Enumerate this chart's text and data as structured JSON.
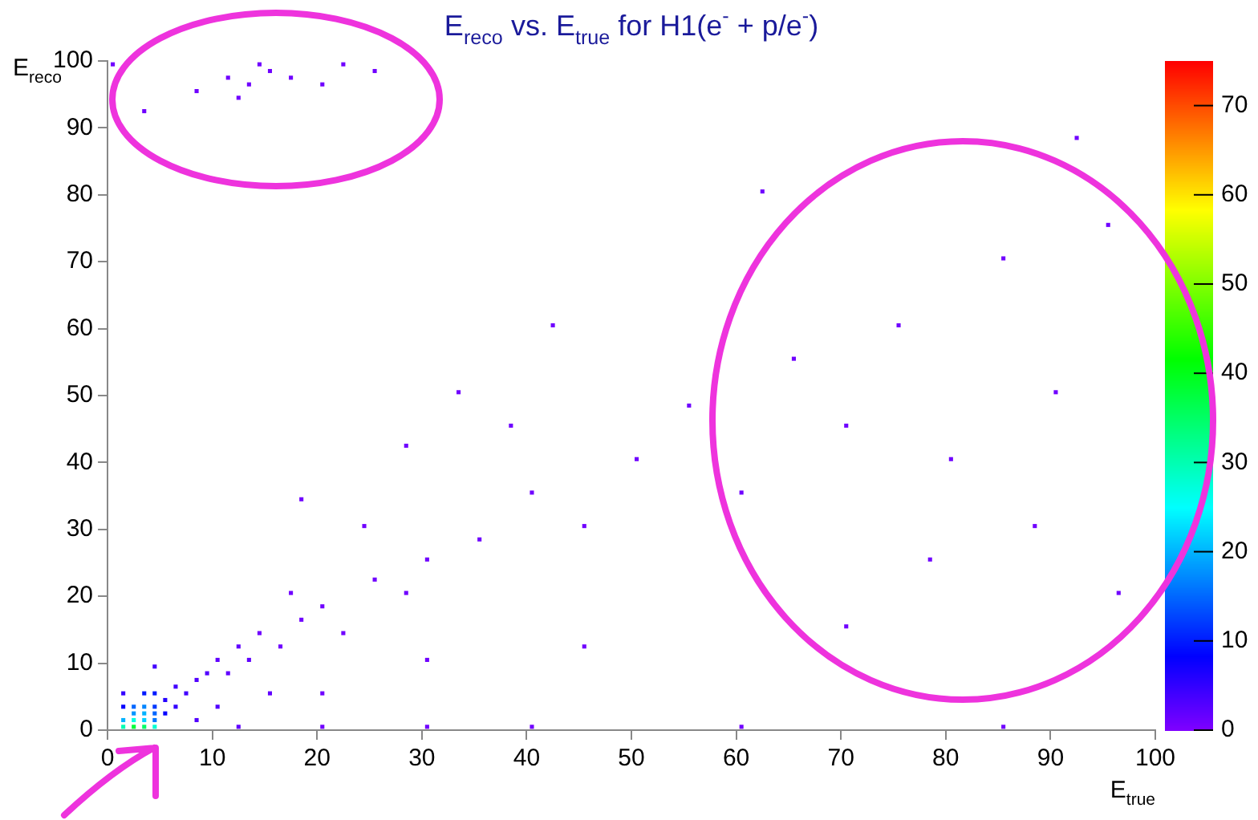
{
  "chart_data": {
    "type": "scatter",
    "title": "E$_{reco}$ vs. E$_{true}$ for H1(e$^{-}$ + p/e$^{-}$)",
    "xlabel": "E$_{true}$",
    "ylabel": "E$_{reco}$",
    "xlim": [
      0,
      100
    ],
    "xticks": [
      0,
      10,
      20,
      30,
      40,
      50,
      60,
      70,
      80,
      90,
      100
    ],
    "ylim": [
      0,
      100
    ],
    "yticks": [
      0,
      10,
      20,
      30,
      40,
      50,
      60,
      70,
      80,
      90,
      100
    ],
    "clim": [
      0,
      75
    ],
    "cticks": [
      0,
      10,
      20,
      30,
      40,
      50,
      60,
      70
    ],
    "grid": false,
    "legend": false,
    "marker": "square",
    "x": [
      1.5,
      2.5,
      3.5,
      4.5,
      1.5,
      2.5,
      3.5,
      4.5,
      2.5,
      3.5,
      4.5,
      2.5,
      3.5,
      4.5,
      3.5,
      4.5,
      4.5,
      1.5,
      1.5,
      5.5,
      5.5,
      6.5,
      7.5,
      8.5,
      9.5,
      6.5,
      10.5,
      12.5,
      11.5,
      14.5,
      13.5,
      16.5,
      18.5,
      20.5,
      17.5,
      22.5,
      25.5,
      28.5,
      30.5,
      24.5,
      35.5,
      40.5,
      45.5,
      38.5,
      50.5,
      55.5,
      60.5,
      65.5,
      70.5,
      75.5,
      80.5,
      85.5,
      90.5,
      95.5,
      62.5,
      78.5,
      88.5,
      70.5,
      42.5,
      33.5,
      92.5,
      96.5,
      20.5,
      30.5,
      45.5,
      10.5,
      15.5,
      8.5,
      12.5,
      20.5,
      30.5,
      40.5,
      60.5,
      85.5,
      8.5,
      11.5,
      13.5,
      15.5,
      17.5,
      14.5,
      12.5,
      20.5,
      22.5,
      3.5,
      0.5,
      25.5,
      28.5,
      18.5
    ],
    "values": [
      0.5,
      0.5,
      0.5,
      0.5,
      1.5,
      1.5,
      1.5,
      1.5,
      2.5,
      2.5,
      2.5,
      3.5,
      3.5,
      3.5,
      5.5,
      5.5,
      9.5,
      3.5,
      5.5,
      2.5,
      4.5,
      3.5,
      5.5,
      7.5,
      8.5,
      6.5,
      10.5,
      12.5,
      8.5,
      14.5,
      10.5,
      12.5,
      16.5,
      18.5,
      20.5,
      14.5,
      22.5,
      20.5,
      25.5,
      30.5,
      28.5,
      35.5,
      30.5,
      45.5,
      40.5,
      48.5,
      35.5,
      55.5,
      45.5,
      60.5,
      40.5,
      70.5,
      50.5,
      75.5,
      80.5,
      25.5,
      30.5,
      15.5,
      60.5,
      50.5,
      88.5,
      20.5,
      5.5,
      10.5,
      12.5,
      3.5,
      5.5,
      1.5,
      0.5,
      0.5,
      0.5,
      0.5,
      0.5,
      0.5,
      95.5,
      97.5,
      96.5,
      98.5,
      97.5,
      99.5,
      94.5,
      96.5,
      99.5,
      92.5,
      99.5,
      98.5,
      42.5,
      34.5
    ],
    "cvalues": [
      30,
      38,
      35,
      28,
      20,
      27,
      22,
      16,
      18,
      20,
      15,
      15,
      17,
      12,
      10,
      10,
      4,
      8,
      5,
      8,
      6,
      5,
      4,
      3,
      3,
      4,
      2,
      2,
      2,
      1,
      2,
      1,
      1,
      1,
      1,
      1,
      1,
      1,
      1,
      1,
      1,
      1,
      1,
      1,
      1,
      1,
      1,
      1,
      1,
      1,
      1,
      1,
      1,
      1,
      1,
      1,
      1,
      1,
      1,
      1,
      1,
      1,
      1,
      1,
      1,
      3,
      2,
      3,
      2,
      1,
      1,
      1,
      1,
      1,
      1,
      1,
      1,
      1,
      1,
      1,
      1,
      1,
      1,
      1,
      1,
      1,
      1,
      1
    ]
  }
}
